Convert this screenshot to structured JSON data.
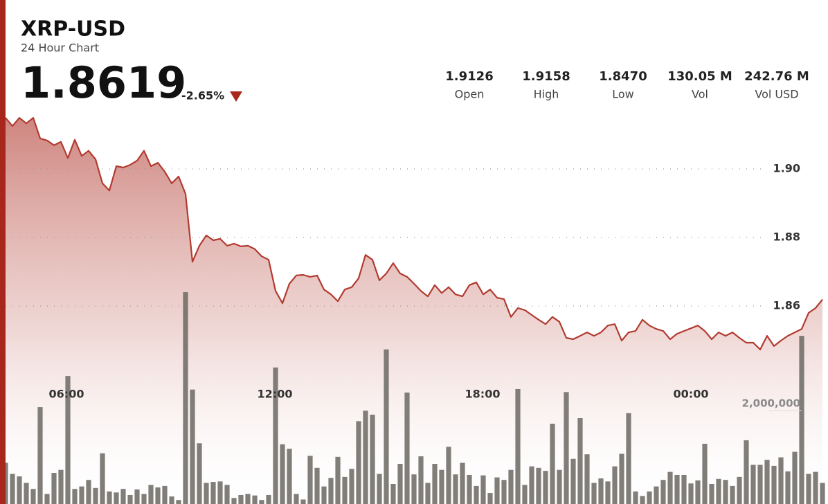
{
  "header": {
    "title": "XRP-USD",
    "subtitle": "24 Hour Chart",
    "price": "1.8619",
    "change": "-2.65%",
    "stats": [
      {
        "value": "1.9126",
        "label": "Open"
      },
      {
        "value": "1.9158",
        "label": "High"
      },
      {
        "value": "1.8470",
        "label": "Low"
      },
      {
        "value": "130.05 M",
        "label": "Vol"
      },
      {
        "value": "242.76 M",
        "label": "Vol USD"
      }
    ]
  },
  "chart_data": {
    "type": "line",
    "xlim": [
      0,
      118
    ],
    "xticks": [
      {
        "value": 8.8,
        "label": "06:00"
      },
      {
        "value": 38.9,
        "label": "12:00"
      },
      {
        "value": 68.9,
        "label": "18:00"
      },
      {
        "value": 99.0,
        "label": "00:00"
      }
    ],
    "ylim": [
      1.84,
      1.92
    ],
    "yticks": [
      1.86,
      1.88,
      {
        "value": 1.9,
        "label": "1.90"
      }
    ],
    "y2lim": [
      0,
      5000000
    ],
    "y2ticks": [
      {
        "value": 2000000,
        "label": "2,000,000"
      }
    ],
    "grid": true,
    "series": [
      {
        "type": "line",
        "color": "#b23a30",
        "values": [
          1.9149,
          1.9125,
          1.9149,
          1.9133,
          1.9149,
          1.9089,
          1.9083,
          1.9069,
          1.9079,
          1.9032,
          1.9085,
          1.9038,
          1.9053,
          1.9028,
          1.8958,
          1.8937,
          1.9008,
          1.9004,
          1.9012,
          1.9024,
          1.9053,
          1.9008,
          1.9018,
          1.8992,
          1.8958,
          1.8978,
          1.8927,
          1.8729,
          1.8776,
          1.8806,
          1.8792,
          1.8796,
          1.8776,
          1.8782,
          1.8774,
          1.8776,
          1.8766,
          1.8745,
          1.8735,
          1.8644,
          1.8608,
          1.8665,
          1.8689,
          1.8691,
          1.8685,
          1.8689,
          1.8648,
          1.8634,
          1.8614,
          1.8648,
          1.8655,
          1.8681,
          1.8749,
          1.8735,
          1.8675,
          1.8695,
          1.8725,
          1.8695,
          1.8685,
          1.8665,
          1.8644,
          1.8628,
          1.8661,
          1.8638,
          1.8655,
          1.8634,
          1.8628,
          1.8661,
          1.8669,
          1.8634,
          1.8648,
          1.8624,
          1.862,
          1.8568,
          1.8594,
          1.8588,
          1.8574,
          1.856,
          1.8547,
          1.8568,
          1.8554,
          1.8507,
          1.8503,
          1.8513,
          1.8523,
          1.8513,
          1.8523,
          1.8543,
          1.8547,
          1.8499,
          1.8523,
          1.8527,
          1.856,
          1.8543,
          1.8533,
          1.8527,
          1.8503,
          1.8519,
          1.8527,
          1.8535,
          1.8543,
          1.8527,
          1.8503,
          1.8523,
          1.8513,
          1.8523,
          1.8507,
          1.8493,
          1.8493,
          1.8473,
          1.8513,
          1.8483,
          1.8499,
          1.8513,
          1.8523,
          1.8533,
          1.858,
          1.8594,
          1.8619
        ]
      },
      {
        "type": "bar",
        "axis": "y2",
        "color": "#6f6c66",
        "values": [
          820000,
          600000,
          550000,
          420000,
          300000,
          1930000,
          200000,
          620000,
          680000,
          2550000,
          300000,
          350000,
          480000,
          320000,
          1010000,
          250000,
          230000,
          300000,
          180000,
          290000,
          200000,
          380000,
          330000,
          360000,
          150000,
          80000,
          4220000,
          2280000,
          1210000,
          420000,
          440000,
          450000,
          380000,
          120000,
          180000,
          200000,
          170000,
          80000,
          180000,
          2720000,
          1190000,
          1100000,
          200000,
          90000,
          960000,
          720000,
          350000,
          520000,
          940000,
          540000,
          700000,
          1650000,
          1860000,
          1780000,
          600000,
          3080000,
          400000,
          800000,
          2220000,
          590000,
          950000,
          420000,
          800000,
          680000,
          1140000,
          590000,
          820000,
          580000,
          360000,
          570000,
          220000,
          530000,
          480000,
          680000,
          2290000,
          380000,
          750000,
          720000,
          660000,
          1600000,
          680000,
          2230000,
          900000,
          1710000,
          990000,
          420000,
          510000,
          450000,
          750000,
          1000000,
          1810000,
          250000,
          160000,
          250000,
          350000,
          480000,
          640000,
          580000,
          580000,
          410000,
          470000,
          1200000,
          400000,
          500000,
          480000,
          360000,
          540000,
          1270000,
          780000,
          780000,
          880000,
          760000,
          930000,
          650000,
          1040000,
          3350000,
          600000,
          640000,
          420000
        ]
      }
    ]
  }
}
